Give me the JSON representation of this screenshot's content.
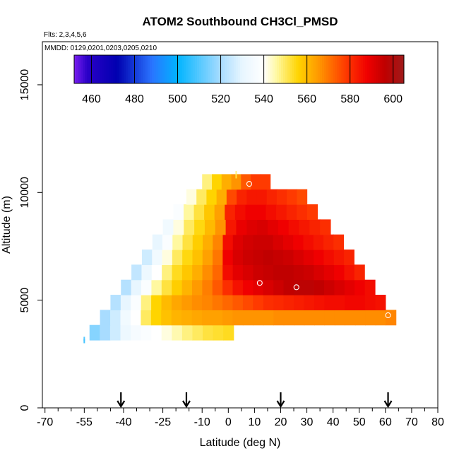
{
  "chart_data": {
    "type": "heatmap",
    "title": "ATOM2 Southbound CH3Cl_PMSD",
    "flights_label": "Flts: 2,3,4,5,6",
    "dates_label": "MMDD: 0129,0201,0203,0205,0210",
    "xlabel": "Latitude (deg N)",
    "ylabel": "Altitude (m)",
    "xlim": [
      -71,
      80
    ],
    "ylim": [
      0,
      17000
    ],
    "x_ticks": [
      -70,
      -55,
      -40,
      -25,
      -10,
      0,
      10,
      20,
      30,
      40,
      50,
      60,
      70,
      80
    ],
    "x_tick_labels": [
      "-70",
      "-55",
      "-40",
      "-25",
      "-10",
      "0",
      "10",
      "20",
      "30",
      "40",
      "50",
      "60",
      "70",
      "80"
    ],
    "x_minor_ticks": [
      -65,
      -60,
      -50,
      -45,
      -35,
      -30,
      -20,
      -15,
      -5,
      5,
      15,
      25,
      35,
      45,
      55,
      65,
      75
    ],
    "y_ticks": [
      0,
      5000,
      10000,
      15000
    ],
    "y_tick_labels": [
      "0",
      "5000",
      "10000",
      "15000"
    ],
    "colorbar": {
      "min": 452,
      "max": 605,
      "ticks": [
        460,
        480,
        500,
        520,
        540,
        560,
        580,
        600
      ],
      "tick_labels": [
        "460",
        "480",
        "500",
        "520",
        "540",
        "560",
        "580",
        "600"
      ],
      "stops": [
        [
          452,
          "#7b1ff0"
        ],
        [
          458,
          "#2a00c8"
        ],
        [
          472,
          "#0000b0"
        ],
        [
          488,
          "#2a74ff"
        ],
        [
          500,
          "#00b4ff"
        ],
        [
          520,
          "#a8dcff"
        ],
        [
          530,
          "#e8f6ff"
        ],
        [
          540,
          "#ffffff"
        ],
        [
          546,
          "#fff8a0"
        ],
        [
          556,
          "#ffd400"
        ],
        [
          566,
          "#ff9400"
        ],
        [
          578,
          "#ff3a00"
        ],
        [
          588,
          "#f00000"
        ],
        [
          596,
          "#c00000"
        ],
        [
          605,
          "#9e1a1a"
        ]
      ]
    },
    "arrow_markers_lat": [
      -41,
      -16,
      20,
      61
    ],
    "field": {
      "lat_step": 4,
      "rows": [
        {
          "alt": 3500,
          "lat_start": -53,
          "lat_end": 2,
          "values": [
            516,
            520,
            526,
            532,
            536,
            538,
            540,
            542,
            545,
            548,
            550,
            552,
            553,
            554
          ]
        },
        {
          "alt": 4200,
          "lat_start": -49,
          "lat_end": 64,
          "values": [
            520,
            526,
            534,
            540,
            550,
            556,
            559,
            561,
            562,
            563,
            564,
            564,
            565,
            566,
            566,
            566,
            566,
            567,
            567,
            567,
            567,
            567,
            567,
            567,
            567,
            567,
            567,
            567,
            568
          ]
        },
        {
          "alt": 4900,
          "lat_start": -45,
          "lat_end": 60,
          "values": [
            522,
            530,
            538,
            548,
            556,
            560,
            563,
            565,
            567,
            568,
            570,
            572,
            574,
            576,
            578,
            580,
            581,
            582,
            583,
            584,
            585,
            586,
            586,
            587,
            587,
            586,
            585
          ]
        },
        {
          "alt": 5600,
          "lat_start": -41,
          "lat_end": 56,
          "values": [
            522,
            530,
            538,
            546,
            552,
            557,
            561,
            565,
            569,
            574,
            580,
            585,
            588,
            590,
            592,
            594,
            596,
            597,
            597,
            596,
            594,
            592,
            590,
            588,
            586
          ]
        },
        {
          "alt": 6300,
          "lat_start": -37,
          "lat_end": 52,
          "values": [
            524,
            532,
            540,
            548,
            554,
            558,
            562,
            567,
            572,
            586,
            590,
            592,
            594,
            595,
            596,
            596,
            595,
            594,
            592,
            590,
            588,
            585,
            582
          ]
        },
        {
          "alt": 7000,
          "lat_start": -33,
          "lat_end": 48,
          "values": [
            526,
            534,
            542,
            550,
            555,
            559,
            564,
            570,
            588,
            592,
            594,
            595,
            596,
            595,
            594,
            592,
            590,
            588,
            586,
            584,
            582
          ]
        },
        {
          "alt": 7700,
          "lat_start": -29,
          "lat_end": 44,
          "values": [
            530,
            538,
            546,
            552,
            557,
            562,
            568,
            586,
            591,
            593,
            594,
            594,
            592,
            590,
            588,
            586,
            584,
            582,
            580
          ]
        },
        {
          "alt": 8400,
          "lat_start": -25,
          "lat_end": 39,
          "values": [
            534,
            542,
            550,
            555,
            560,
            566,
            584,
            589,
            591,
            592,
            590,
            588,
            586,
            584,
            582,
            580
          ]
        },
        {
          "alt": 9100,
          "lat_start": -21,
          "lat_end": 34,
          "values": [
            538,
            546,
            552,
            558,
            564,
            582,
            586,
            588,
            588,
            586,
            584,
            582,
            580,
            578
          ]
        },
        {
          "alt": 9800,
          "lat_start": -16,
          "lat_end": 30,
          "values": [
            542,
            550,
            556,
            562,
            576,
            582,
            584,
            584,
            582,
            580,
            578,
            576
          ]
        },
        {
          "alt": 10500,
          "lat_start": -10,
          "lat_end": 16,
          "values": [
            548,
            556,
            562,
            566,
            574,
            578,
            578
          ]
        }
      ],
      "sparse_points": [
        {
          "lat": -55,
          "alt": 3200,
          "value": 510
        },
        {
          "lat": -55,
          "alt": 3100,
          "value": 508
        },
        {
          "lat": 3,
          "alt": 10900,
          "value": 548
        },
        {
          "lat": 3,
          "alt": 10750,
          "value": 552
        }
      ]
    },
    "circle_markers": [
      {
        "lat": 8,
        "alt": 10400
      },
      {
        "lat": 12,
        "alt": 5800
      },
      {
        "lat": 26,
        "alt": 5600
      },
      {
        "lat": 61,
        "alt": 4300
      }
    ]
  }
}
